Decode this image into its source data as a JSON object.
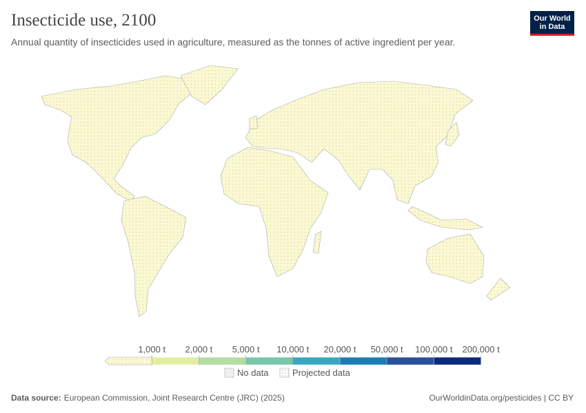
{
  "header": {
    "title": "Insecticide use, 2100",
    "subtitle": "Annual quantity of insecticides used in agriculture, measured as the tonnes of active ingredient per year.",
    "logo": [
      "Our World",
      "in Data"
    ]
  },
  "legend": {
    "thresholds": [
      "1,000 t",
      "2,000 t",
      "5,000 t",
      "10,000 t",
      "20,000 t",
      "50,000 t",
      "100,000 t",
      "200,000 t"
    ],
    "colors": [
      "#f7f4c6",
      "#e2ee9f",
      "#b4dda1",
      "#79c6aa",
      "#39a7c1",
      "#1c7db4",
      "#27519c",
      "#0b2a7d"
    ],
    "no_data": "No data",
    "projected": "Projected data"
  },
  "footer": {
    "source_label": "Data source:",
    "source": "European Commission, Joint Research Centre (JRC) (2025)",
    "url": "OurWorldinData.org/pesticides | CC BY"
  }
}
